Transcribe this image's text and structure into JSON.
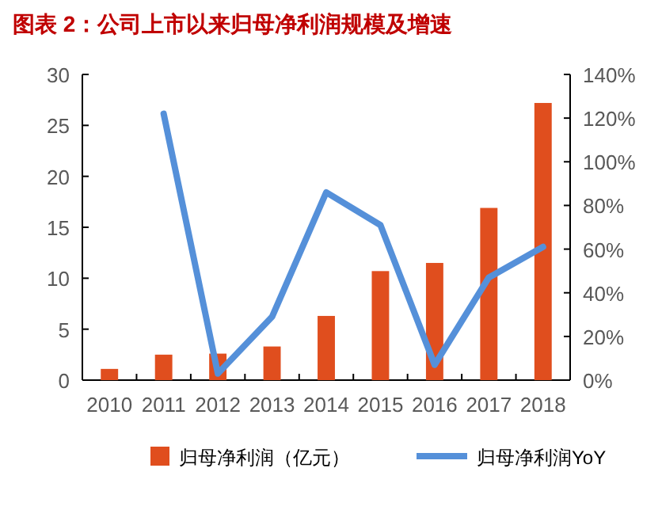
{
  "chart_data": {
    "type": "bar",
    "title": "图表 2：公司上市以来归母净利润规模及增速",
    "categories": [
      "2010",
      "2011",
      "2012",
      "2013",
      "2014",
      "2015",
      "2016",
      "2017",
      "2018"
    ],
    "series": [
      {
        "name": "归母净利润（亿元）",
        "color": "#e04e1e",
        "values": [
          1.1,
          2.5,
          2.6,
          3.3,
          6.3,
          10.7,
          11.5,
          16.9,
          27.2
        ]
      },
      {
        "name": "归母净利润YoY",
        "type": "line",
        "axis": "y2",
        "color": "#5590d9",
        "values": [
          null,
          122,
          3,
          29,
          86,
          71,
          7,
          47,
          61
        ]
      }
    ],
    "ylim": [
      0,
      30
    ],
    "yticks": [
      0,
      5,
      10,
      15,
      20,
      25,
      30
    ],
    "y2lim": [
      0,
      140
    ],
    "y2ticks": [
      {
        "value": 0,
        "label": "0%"
      },
      {
        "value": 20,
        "label": "20%"
      },
      {
        "value": 40,
        "label": "40%"
      },
      {
        "value": 60,
        "label": "60%"
      },
      {
        "value": 80,
        "label": "80%"
      },
      {
        "value": 100,
        "label": "100%"
      },
      {
        "value": 120,
        "label": "120%"
      },
      {
        "value": 140,
        "label": "140%"
      }
    ],
    "legend": "bottom",
    "marker": "none",
    "grid": false
  }
}
